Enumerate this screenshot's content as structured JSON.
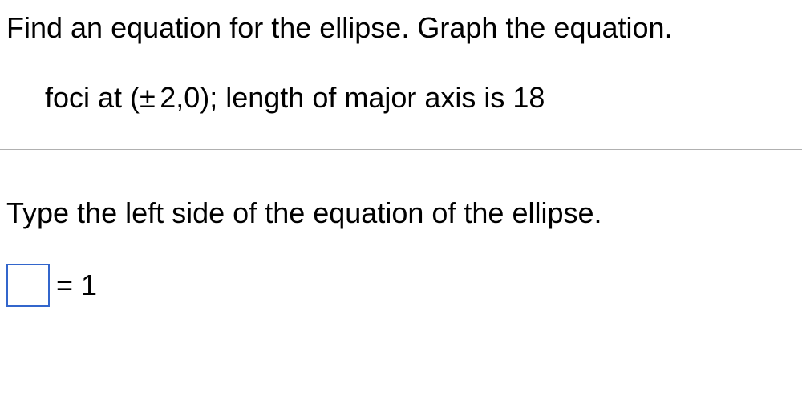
{
  "top": {
    "instruction": "Find an equation for the ellipse.  Graph the equation.",
    "details_prefix": "foci at (",
    "details_value": "2,0); length of major axis is 18"
  },
  "bottom": {
    "instruction": "Type the left side of the equation of the ellipse.",
    "equals_label": "= 1"
  },
  "styles": {
    "font_size_pt": 36,
    "text_color": "#000000",
    "background_color": "#ffffff",
    "divider_color": "#b0b0b0",
    "input_border_color": "#3366cc",
    "plus_minus_glyph": "±"
  }
}
